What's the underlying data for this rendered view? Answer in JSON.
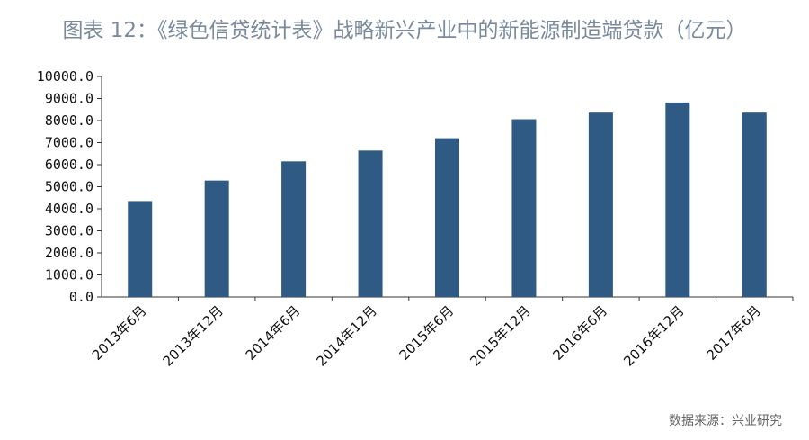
{
  "chart_data": {
    "type": "bar",
    "title": "图表 12：《绿色信贷统计表》战略新兴产业中的新能源制造端贷款（亿元）",
    "categories": [
      "2013年6月",
      "2013年12月",
      "2014年6月",
      "2014年12月",
      "2015年6月",
      "2015年12月",
      "2016年6月",
      "2016年12月",
      "2017年6月"
    ],
    "values": [
      4350,
      5280,
      6150,
      6640,
      7200,
      8060,
      8360,
      8820,
      8360
    ],
    "ylim": [
      0,
      10000
    ],
    "yticks": [
      "0.0",
      "1000.0",
      "2000.0",
      "3000.0",
      "4000.0",
      "5000.0",
      "6000.0",
      "7000.0",
      "8000.0",
      "9000.0",
      "10000.0"
    ],
    "grid": false,
    "bar_color": "#2e5a84"
  },
  "source": "数据来源：兴业研究"
}
